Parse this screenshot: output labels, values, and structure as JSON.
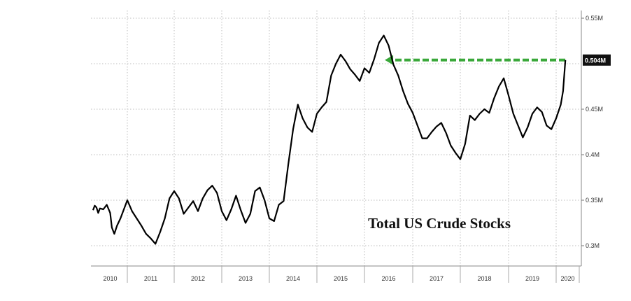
{
  "chart_data": {
    "type": "line",
    "title": "Total US Crude Stocks",
    "xlabel": "",
    "ylabel": "",
    "x_categories": [
      "2010",
      "2011",
      "2012",
      "2013",
      "2014",
      "2015",
      "2016",
      "2017",
      "2018",
      "2019",
      "2020"
    ],
    "xlim": [
      2010,
      2020.3
    ],
    "ylim": [
      0.28,
      0.55
    ],
    "y_ticks": [
      {
        "value": 0.55,
        "label": "0.55M"
      },
      {
        "value": 0.45,
        "label": "0.45M"
      },
      {
        "value": 0.4,
        "label": "0.4M"
      },
      {
        "value": 0.35,
        "label": "0.35M"
      },
      {
        "value": 0.3,
        "label": "0.3M"
      }
    ],
    "last_value": {
      "value": 0.504,
      "label": "0.504M"
    },
    "grid": true,
    "annotation": {
      "type": "dashed-arrow",
      "color": "#3aa83a",
      "from_value": 0.504,
      "to_year": 2016.45
    },
    "line_color": "#000000",
    "series": [
      {
        "x": [
          2010.0,
          2010.05,
          2010.1,
          2010.15,
          2010.2,
          2010.3,
          2010.4,
          2010.5,
          2010.55,
          2010.62,
          2010.7,
          2010.8,
          2010.9,
          2011.0,
          2011.1,
          2011.2,
          2011.3,
          2011.4,
          2011.5,
          2011.6,
          2011.7,
          2011.8,
          2011.9,
          2012.0,
          2012.1,
          2012.2,
          2012.3,
          2012.4,
          2012.5,
          2012.6,
          2012.7,
          2012.8,
          2012.9,
          2013.0,
          2013.1,
          2013.2,
          2013.3,
          2013.4,
          2013.5,
          2013.6,
          2013.7,
          2013.8,
          2013.9,
          2014.0,
          2014.1,
          2014.2,
          2014.3,
          2014.4,
          2014.5,
          2014.6,
          2014.7,
          2014.8,
          2014.9,
          2015.0,
          2015.1,
          2015.2,
          2015.3,
          2015.4,
          2015.5,
          2015.6,
          2015.7,
          2015.8,
          2015.9,
          2016.0,
          2016.1,
          2016.2,
          2016.3,
          2016.4,
          2016.5,
          2016.6,
          2016.7,
          2016.8,
          2016.9,
          2017.0,
          2017.1,
          2017.2,
          2017.3,
          2017.4,
          2017.5,
          2017.6,
          2017.7,
          2017.8,
          2017.9,
          2018.0,
          2018.1,
          2018.2,
          2018.3,
          2018.4,
          2018.5,
          2018.6,
          2018.7,
          2018.8,
          2018.9,
          2019.0,
          2019.1,
          2019.2,
          2019.3,
          2019.4,
          2019.5,
          2019.6,
          2019.7,
          2019.8,
          2019.9,
          2020.0,
          2020.1,
          2020.15,
          2020.2
        ],
        "y": [
          0.339,
          0.344,
          0.342,
          0.336,
          0.341,
          0.34,
          0.345,
          0.336,
          0.32,
          0.313,
          0.322,
          0.33,
          0.34,
          0.35,
          0.338,
          0.33,
          0.322,
          0.313,
          0.308,
          0.302,
          0.315,
          0.33,
          0.352,
          0.36,
          0.352,
          0.335,
          0.342,
          0.349,
          0.338,
          0.352,
          0.361,
          0.366,
          0.358,
          0.338,
          0.328,
          0.34,
          0.355,
          0.339,
          0.325,
          0.335,
          0.36,
          0.364,
          0.35,
          0.33,
          0.327,
          0.345,
          0.349,
          0.39,
          0.428,
          0.455,
          0.44,
          0.43,
          0.425,
          0.445,
          0.452,
          0.458,
          0.487,
          0.5,
          0.51,
          0.503,
          0.494,
          0.488,
          0.481,
          0.495,
          0.49,
          0.505,
          0.523,
          0.531,
          0.52,
          0.499,
          0.487,
          0.47,
          0.456,
          0.446,
          0.432,
          0.418,
          0.418,
          0.425,
          0.431,
          0.435,
          0.424,
          0.41,
          0.402,
          0.395,
          0.412,
          0.443,
          0.438,
          0.445,
          0.45,
          0.446,
          0.462,
          0.475,
          0.484,
          0.465,
          0.445,
          0.432,
          0.419,
          0.43,
          0.445,
          0.452,
          0.447,
          0.432,
          0.428,
          0.44,
          0.455,
          0.47,
          0.504
        ]
      }
    ]
  }
}
